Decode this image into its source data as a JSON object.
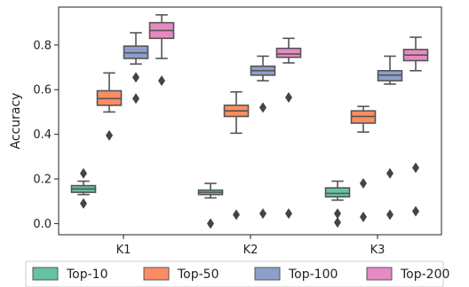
{
  "chart_data": {
    "type": "box",
    "title": "",
    "xlabel": "",
    "ylabel": "Accuracy",
    "ylim": [
      -0.05,
      0.97
    ],
    "yticks": [
      "0.0",
      "0.2",
      "0.4",
      "0.6",
      "0.8"
    ],
    "categories": [
      "K1",
      "K2",
      "K3"
    ],
    "legend": {
      "placement": "bottom-outside",
      "columns": 4
    },
    "grid": false,
    "series": [
      {
        "name": "Top-10",
        "color": "#66c2a5",
        "boxes": [
          {
            "whislo": 0.13,
            "q1": 0.14,
            "med": 0.155,
            "q3": 0.17,
            "whishi": 0.19,
            "fliers": [
              0.225,
              0.09
            ]
          },
          {
            "whislo": 0.115,
            "q1": 0.13,
            "med": 0.14,
            "q3": 0.15,
            "whishi": 0.18,
            "fliers": [
              0.0
            ]
          },
          {
            "whislo": 0.105,
            "q1": 0.12,
            "med": 0.135,
            "q3": 0.16,
            "whishi": 0.19,
            "fliers": [
              0.045,
              0.005
            ]
          }
        ]
      },
      {
        "name": "Top-50",
        "color": "#fc8d62",
        "boxes": [
          {
            "whislo": 0.5,
            "q1": 0.53,
            "med": 0.56,
            "q3": 0.595,
            "whishi": 0.675,
            "fliers": [
              0.395
            ]
          },
          {
            "whislo": 0.405,
            "q1": 0.48,
            "med": 0.505,
            "q3": 0.53,
            "whishi": 0.59,
            "fliers": [
              0.04
            ]
          },
          {
            "whislo": 0.41,
            "q1": 0.45,
            "med": 0.48,
            "q3": 0.505,
            "whishi": 0.525,
            "fliers": [
              0.18,
              0.03
            ]
          }
        ]
      },
      {
        "name": "Top-100",
        "color": "#8da0cb",
        "boxes": [
          {
            "whislo": 0.715,
            "q1": 0.74,
            "med": 0.765,
            "q3": 0.795,
            "whishi": 0.855,
            "fliers": [
              0.655,
              0.56
            ]
          },
          {
            "whislo": 0.64,
            "q1": 0.665,
            "med": 0.685,
            "q3": 0.705,
            "whishi": 0.75,
            "fliers": [
              0.52,
              0.045
            ]
          },
          {
            "whislo": 0.625,
            "q1": 0.64,
            "med": 0.665,
            "q3": 0.685,
            "whishi": 0.75,
            "fliers": [
              0.225,
              0.04
            ]
          }
        ]
      },
      {
        "name": "Top-200",
        "color": "#e78ac3",
        "boxes": [
          {
            "whislo": 0.74,
            "q1": 0.83,
            "med": 0.865,
            "q3": 0.9,
            "whishi": 0.935,
            "fliers": [
              0.64
            ]
          },
          {
            "whislo": 0.72,
            "q1": 0.745,
            "med": 0.76,
            "q3": 0.785,
            "whishi": 0.83,
            "fliers": [
              0.565,
              0.045
            ]
          },
          {
            "whislo": 0.685,
            "q1": 0.73,
            "med": 0.755,
            "q3": 0.78,
            "whishi": 0.835,
            "fliers": [
              0.25,
              0.055
            ]
          }
        ]
      }
    ]
  }
}
